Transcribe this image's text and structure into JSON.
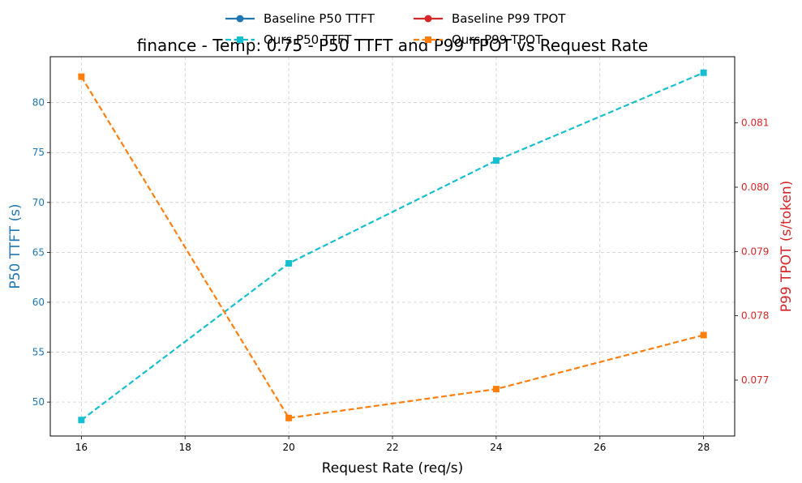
{
  "chart_data": {
    "type": "line",
    "title": "finance - Temp: 0.75 - P50 TTFT and P99 TPOT vs Request Rate",
    "xlabel": "Request Rate (req/s)",
    "ylabel_left": "P50 TTFT (s)",
    "ylabel_right": "P99 TPOT (s/token)",
    "x": [
      16,
      20,
      24,
      28
    ],
    "xlim": [
      15.4,
      28.6
    ],
    "xticks": [
      "16",
      "18",
      "20",
      "22",
      "24",
      "26",
      "28"
    ],
    "ylim_left": [
      46.6,
      84.6
    ],
    "yticks_left": [
      "50",
      "55",
      "60",
      "65",
      "70",
      "75",
      "80"
    ],
    "ylim_right": [
      0.07613,
      0.08203
    ],
    "yticks_right": [
      "0.077",
      "0.078",
      "0.079",
      "0.080",
      "0.081"
    ],
    "grid": true,
    "legend_position": "top-center",
    "colors": {
      "baseline_ttft": "#1f77b4",
      "baseline_tpot": "#d62728",
      "ours_ttft": "#17becf",
      "ours_tpot": "#ff7f0e",
      "left_axis": "#1f77b4",
      "right_axis": "#d62728"
    },
    "legend": [
      {
        "label": "Baseline P50 TTFT",
        "color": "#1f77b4",
        "dash": false,
        "marker": "circle"
      },
      {
        "label": "Baseline P99 TPOT",
        "color": "#d62728",
        "dash": false,
        "marker": "circle"
      },
      {
        "label": "Ours P50 TTFT",
        "color": "#17becf",
        "dash": true,
        "marker": "square"
      },
      {
        "label": "Ours P99 TPOT",
        "color": "#ff7f0e",
        "dash": true,
        "marker": "square"
      }
    ],
    "series": [
      {
        "name": "Ours P50 TTFT",
        "axis": "left",
        "values": [
          48.2,
          63.9,
          74.2,
          83.0
        ]
      },
      {
        "name": "Ours P99 TPOT",
        "axis": "right",
        "values": [
          0.08172,
          0.07641,
          0.07686,
          0.0777
        ]
      }
    ]
  }
}
